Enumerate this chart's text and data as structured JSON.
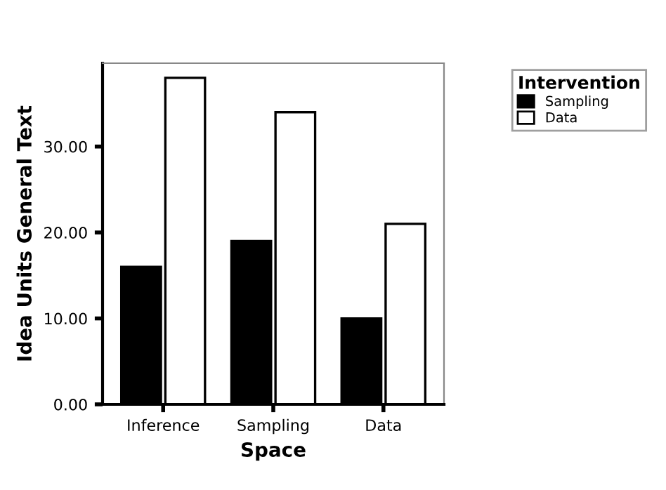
{
  "chart_data": {
    "type": "bar",
    "xlabel": "Space",
    "ylabel": "Idea Units General Text",
    "legend_title": "Intervention",
    "categories": [
      "Inference",
      "Sampling",
      "Data"
    ],
    "series": [
      {
        "name": "Sampling",
        "color": "#000000",
        "values": [
          16,
          19,
          10
        ]
      },
      {
        "name": "Data",
        "color": "#ffffff",
        "values": [
          38,
          34,
          21
        ]
      }
    ],
    "ylim": [
      0,
      39.7
    ],
    "yticks": [
      {
        "value": 0,
        "label": "0.00"
      },
      {
        "value": 10,
        "label": "10.00"
      },
      {
        "value": 20,
        "label": "20.00"
      },
      {
        "value": 30,
        "label": "30.00"
      }
    ],
    "grid": false,
    "legend": "top right"
  }
}
